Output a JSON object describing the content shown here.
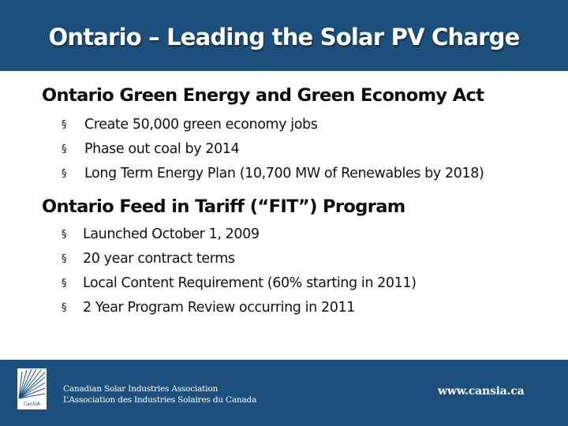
{
  "title": "Ontario – Leading the Solar PV Charge",
  "sections": [
    {
      "heading": "Ontario Green Energy and Green Economy Act",
      "bullets": [
        "Create 50,000 green economy jobs",
        "Phase out coal by 2014",
        "Long Term Energy Plan (10,700 MW of Renewables by 2018)"
      ]
    },
    {
      "heading": "Ontario Feed in Tariff (“FIT”) Program",
      "bullets": [
        "Launched October 1, 2009",
        "20 year contract terms",
        "Local Content Requirement (60% starting in 2011)",
        "2 Year Program Review occurring in 2011"
      ]
    }
  ],
  "bullet_symbol": "§",
  "footer": {
    "logo_text": "CanSIA",
    "org_line_en": "Canadian Solar Industries Association",
    "org_line_fr": "L’Association des Industries Solaires du Canada",
    "url": "www.cansia.ca"
  },
  "colors": {
    "brand_blue": "#1d4f7c"
  }
}
